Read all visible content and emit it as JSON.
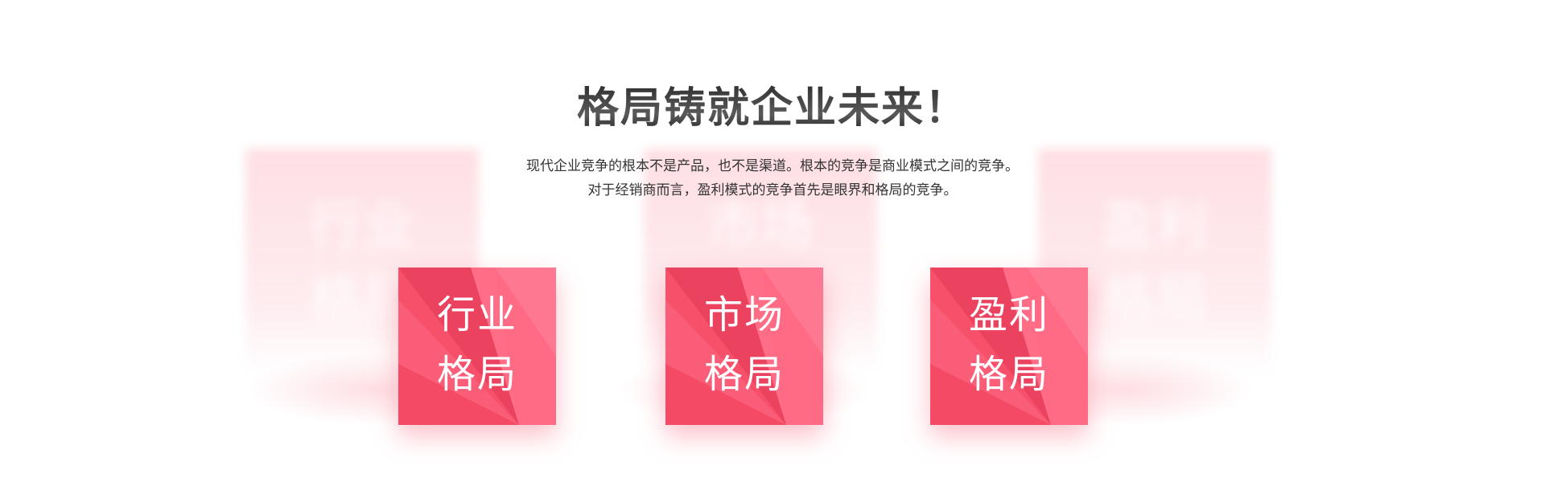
{
  "header": {
    "title": "格局铸就企业未来！",
    "subtitle_line1": "现代企业竞争的根本不是产品，也不是渠道。根本的竞争是商业模式之间的竞争。",
    "subtitle_line2": "对于经销商而言，盈利模式的竞争首先是眼界和格局的竞争。"
  },
  "cards": [
    {
      "line1": "行业",
      "line2": "格局"
    },
    {
      "line1": "市场",
      "line2": "格局"
    },
    {
      "line1": "盈利",
      "line2": "格局"
    }
  ],
  "colors": {
    "card_base": "#f7546f",
    "card_light": "#ff7a92",
    "card_dark": "#e23a57",
    "text_dark": "#333333"
  }
}
